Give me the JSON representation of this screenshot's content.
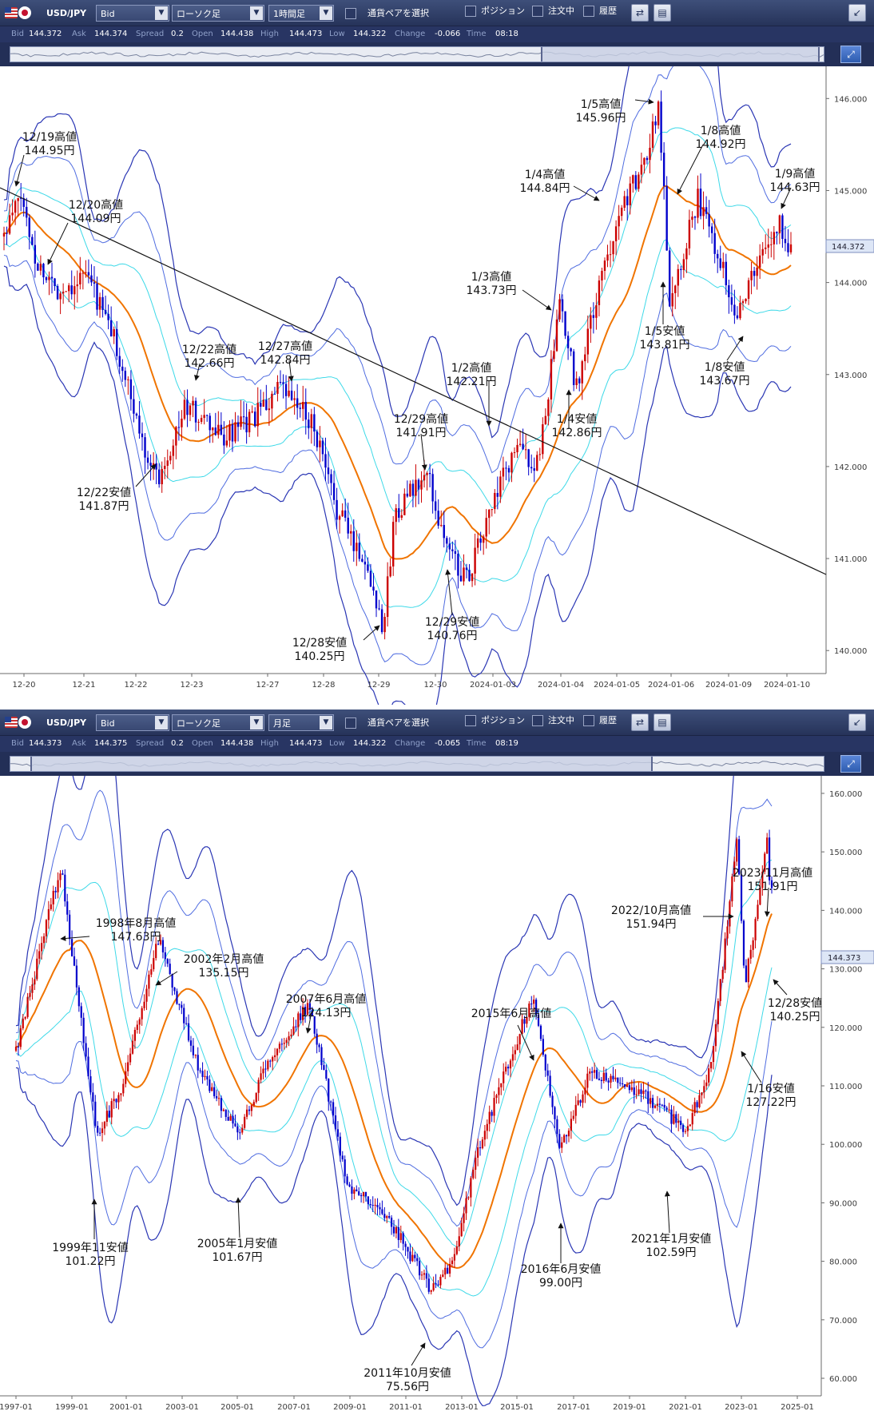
{
  "panels": [
    {
      "toolbar": {
        "symbol": "USD/JPY",
        "price_type": "Bid",
        "chart_style": "ローソク足",
        "timeframe": "1時間足",
        "select_pair": "通貨ペアを選択",
        "position": "ポジション",
        "orders": "注文中",
        "history": "履歴"
      },
      "quote": {
        "bid_label": "Bid",
        "bid": "144.372",
        "ask_label": "Ask",
        "ask": "144.374",
        "spread_label": "Spread",
        "spread": "0.2",
        "open_label": "Open",
        "open": "144.438",
        "high_label": "High",
        "high": "144.473",
        "low_label": "Low",
        "low": "144.322",
        "change_label": "Change",
        "change": "-0.066",
        "time_label": "Time",
        "time": "08:18"
      },
      "navigator": {
        "window_start": 0.652,
        "window_end": 0.995
      },
      "chart": {
        "last_price_tag": "144.372",
        "y_ticks": [
          "146.000",
          "145.000",
          "144.000",
          "143.000",
          "142.000",
          "141.000",
          "140.000"
        ],
        "x_ticks": [
          "12-20",
          "12-21",
          "12-22",
          "12-23",
          "12-27",
          "12-28",
          "12-29",
          "12-30",
          "2024-01-03",
          "2024-01-04",
          "2024-01-05",
          "2024-01-06",
          "2024-01-09",
          "2024-01-10"
        ],
        "annotations": [
          {
            "label": "12/19高値",
            "value": "144.95円"
          },
          {
            "label": "12/20高値",
            "value": "144.09円"
          },
          {
            "label": "12/22高値",
            "value": "142.66円"
          },
          {
            "label": "12/27高値",
            "value": "142.84円"
          },
          {
            "label": "12/22安値",
            "value": "141.87円"
          },
          {
            "label": "12/28安値",
            "value": "140.25円"
          },
          {
            "label": "12/29高値",
            "value": "141.91円"
          },
          {
            "label": "12/29安値",
            "value": "140.76円"
          },
          {
            "label": "1/2高値",
            "value": "142.21円"
          },
          {
            "label": "1/3高値",
            "value": "143.73円"
          },
          {
            "label": "1/4安値",
            "value": "142.86円"
          },
          {
            "label": "1/4高値",
            "value": "144.84円"
          },
          {
            "label": "1/5高値",
            "value": "145.96円"
          },
          {
            "label": "1/5安値",
            "value": "143.81円"
          },
          {
            "label": "1/8高値",
            "value": "144.92円"
          },
          {
            "label": "1/8安値",
            "value": "143.67円"
          },
          {
            "label": "1/9高値",
            "value": "144.63円"
          }
        ]
      }
    },
    {
      "toolbar": {
        "symbol": "USD/JPY",
        "price_type": "Bid",
        "chart_style": "ローソク足",
        "timeframe": "月足",
        "select_pair": "通貨ペアを選択",
        "position": "ポジション",
        "orders": "注文中",
        "history": "履歴"
      },
      "quote": {
        "bid_label": "Bid",
        "bid": "144.373",
        "ask_label": "Ask",
        "ask": "144.375",
        "spread_label": "Spread",
        "spread": "0.2",
        "open_label": "Open",
        "open": "144.438",
        "high_label": "High",
        "high": "144.473",
        "low_label": "Low",
        "low": "144.322",
        "change_label": "Change",
        "change": "-0.065",
        "time_label": "Time",
        "time": "08:19"
      },
      "navigator": {
        "window_start": 0.025,
        "window_end": 0.79
      },
      "chart": {
        "last_price_tag": "144.373",
        "y_ticks": [
          "160.000",
          "150.000",
          "140.000",
          "130.000",
          "120.000",
          "110.000",
          "100.000",
          "90.000",
          "80.000",
          "70.000",
          "60.000"
        ],
        "x_ticks": [
          "1997-01",
          "1999-01",
          "2001-01",
          "2003-01",
          "2005-01",
          "2007-01",
          "2009-01",
          "2011-01",
          "2013-01",
          "2015-01",
          "2017-01",
          "2019-01",
          "2021-01",
          "2023-01",
          "2025-01"
        ],
        "annotations": [
          {
            "label": "1998年8月高値",
            "value": "147.63円"
          },
          {
            "label": "2002年2月高値",
            "value": "135.15円"
          },
          {
            "label": "2007年6月高値",
            "value": "124.13円"
          },
          {
            "label": "1999年11安値",
            "value": "101.22円"
          },
          {
            "label": "2005年1月安値",
            "value": "101.67円"
          },
          {
            "label": "2011年10月安値",
            "value": "75.56円"
          },
          {
            "label": "2015年6月高値",
            "value": ""
          },
          {
            "label": "2016年6月安値",
            "value": "99.00円"
          },
          {
            "label": "2021年1月安値",
            "value": "102.59円"
          },
          {
            "label": "2022/10月高値",
            "value": "151.94円"
          },
          {
            "label": "2023/11月高値",
            "value": "151.91円"
          },
          {
            "label": "12/28安値",
            "value": "140.25円"
          },
          {
            "label": "1/16安値",
            "value": "127.22円"
          }
        ]
      }
    }
  ],
  "chart_data": [
    {
      "type": "candlestick",
      "pair": "USD/JPY",
      "timeframe": "1時間足",
      "ylim": [
        139.75,
        146.35
      ],
      "x": [
        "12-20",
        "12-21",
        "12-22",
        "12-23",
        "12-27",
        "12-28",
        "12-29",
        "12-30",
        "2024-01-03",
        "2024-01-04",
        "2024-01-05",
        "2024-01-06",
        "2024-01-09",
        "2024-01-10"
      ],
      "close_path": [
        [
          0,
          144.5
        ],
        [
          0.3,
          144.95
        ],
        [
          0.6,
          144.2
        ],
        [
          1.0,
          143.9
        ],
        [
          1.5,
          144.09
        ],
        [
          2.0,
          143.4
        ],
        [
          2.5,
          142.3
        ],
        [
          2.8,
          141.87
        ],
        [
          3.3,
          142.66
        ],
        [
          4.0,
          142.3
        ],
        [
          4.5,
          142.5
        ],
        [
          5.0,
          142.84
        ],
        [
          5.6,
          142.5
        ],
        [
          6.0,
          141.6
        ],
        [
          6.6,
          140.9
        ],
        [
          6.9,
          140.25
        ],
        [
          7.1,
          141.5
        ],
        [
          7.7,
          141.91
        ],
        [
          8.0,
          141.2
        ],
        [
          8.4,
          140.76
        ],
        [
          8.9,
          141.6
        ],
        [
          9.3,
          142.21
        ],
        [
          9.7,
          142.0
        ],
        [
          10.1,
          143.73
        ],
        [
          10.4,
          142.86
        ],
        [
          10.8,
          143.9
        ],
        [
          11.2,
          144.84
        ],
        [
          11.6,
          145.2
        ],
        [
          11.9,
          145.96
        ],
        [
          12.1,
          143.81
        ],
        [
          12.6,
          144.92
        ],
        [
          13.0,
          144.3
        ],
        [
          13.3,
          143.67
        ],
        [
          13.7,
          144.2
        ],
        [
          14.1,
          144.63
        ],
        [
          14.3,
          144.37
        ]
      ]
    },
    {
      "type": "candlestick",
      "pair": "USD/JPY",
      "timeframe": "月足",
      "ylim": [
        57,
        163
      ],
      "x": [
        "1997-01",
        "1999-01",
        "2001-01",
        "2003-01",
        "2005-01",
        "2007-01",
        "2009-01",
        "2011-01",
        "2013-01",
        "2015-01",
        "2017-01",
        "2019-01",
        "2021-01",
        "2023-01",
        "2025-01"
      ],
      "close_path": [
        [
          1997.0,
          116
        ],
        [
          1998.6,
          147.63
        ],
        [
          1999.9,
          101.22
        ],
        [
          2000.8,
          110
        ],
        [
          2002.1,
          135.15
        ],
        [
          2003.6,
          112
        ],
        [
          2005.0,
          101.67
        ],
        [
          2006.0,
          114
        ],
        [
          2007.5,
          124.13
        ],
        [
          2008.9,
          92
        ],
        [
          2010.0,
          90
        ],
        [
          2011.8,
          75.56
        ],
        [
          2012.6,
          79
        ],
        [
          2013.6,
          100
        ],
        [
          2015.5,
          125.5
        ],
        [
          2016.5,
          99.0
        ],
        [
          2017.5,
          112
        ],
        [
          2019.0,
          110
        ],
        [
          2021.0,
          102.59
        ],
        [
          2021.9,
          114
        ],
        [
          2022.8,
          151.94
        ],
        [
          2023.1,
          127.22
        ],
        [
          2023.9,
          151.91
        ],
        [
          2024.0,
          140.25
        ],
        [
          2024.05,
          144.37
        ]
      ]
    }
  ],
  "colors": {
    "up": "#cc0000",
    "down": "#0000cc",
    "ma": "#f07400",
    "band_outer": "#2a36b4",
    "band_mid": "#4f6ce0",
    "band_inner": "#3dd9e8",
    "trendline": "#000000"
  }
}
